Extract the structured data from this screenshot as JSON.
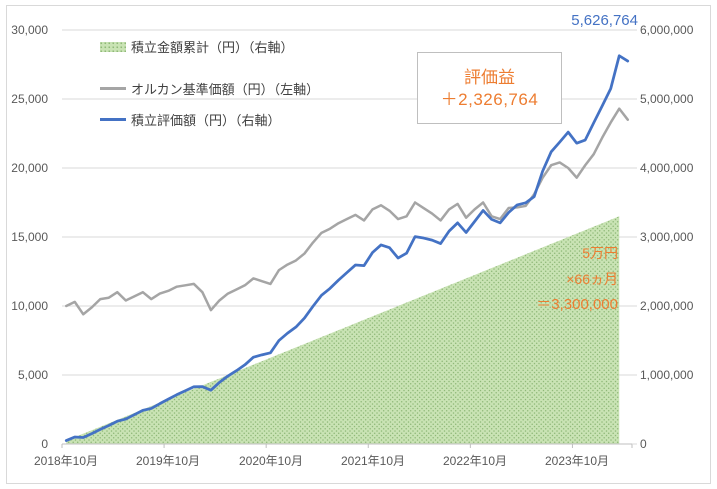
{
  "colors": {
    "blue": "#4472C4",
    "gray": "#A5A5A5",
    "green_fill": "#C9E3B4",
    "green_dot": "#8FB878",
    "orange": "#ED7D31",
    "axis_text": "#595959",
    "gridline": "#D9D9D9",
    "axis_line": "#BFBFBF"
  },
  "annotations": {
    "max_label": "5,626,764",
    "gain_box": {
      "title": "評価益",
      "value": "＋2,326,764"
    },
    "contrib_note": {
      "line1": "5万円",
      "line2": "×66ヵ月",
      "line3": "＝3,300,000"
    }
  },
  "chart_data": {
    "type": "combo",
    "title": "",
    "months": 67,
    "x_start": "2018年10月",
    "x_tick_labels": [
      "2018年10月",
      "2019年10月",
      "2020年10月",
      "2021年10月",
      "2022年10月",
      "2023年10月"
    ],
    "grid": true,
    "legend_position": "top-left-inside",
    "left_axis": {
      "min": 0,
      "max": 30000,
      "step": 5000,
      "tick_labels": [
        "30,000",
        "25,000",
        "20,000",
        "15,000",
        "10,000",
        "5,000",
        "0"
      ]
    },
    "right_axis": {
      "min": 0,
      "max": 6000000,
      "step": 1000000,
      "tick_labels": [
        "6,000,000",
        "5,000,000",
        "4,000,000",
        "3,000,000",
        "2,000,000",
        "1,000,000",
        "0"
      ]
    },
    "monthly_contribution": 50000,
    "series": [
      {
        "name": "積立金額累計（円）（右軸）",
        "type": "area",
        "axis": "right",
        "color": "#C9E3B4",
        "values": [
          50000,
          100000,
          150000,
          200000,
          250000,
          300000,
          350000,
          400000,
          450000,
          500000,
          550000,
          600000,
          650000,
          700000,
          750000,
          800000,
          850000,
          900000,
          950000,
          1000000,
          1050000,
          1100000,
          1150000,
          1200000,
          1250000,
          1300000,
          1350000,
          1400000,
          1450000,
          1500000,
          1550000,
          1600000,
          1650000,
          1700000,
          1750000,
          1800000,
          1850000,
          1900000,
          1950000,
          2000000,
          2050000,
          2100000,
          2150000,
          2200000,
          2250000,
          2300000,
          2350000,
          2400000,
          2450000,
          2500000,
          2550000,
          2600000,
          2650000,
          2700000,
          2750000,
          2800000,
          2850000,
          2900000,
          2950000,
          3000000,
          3050000,
          3100000,
          3150000,
          3200000,
          3250000,
          3300000,
          null
        ]
      },
      {
        "name": "オルカン基準価額（円）（左軸）",
        "type": "line",
        "axis": "left",
        "color": "#A5A5A5",
        "values": [
          10000,
          10300,
          9400,
          9900,
          10500,
          10600,
          11000,
          10400,
          10700,
          11000,
          10500,
          10900,
          11100,
          11400,
          11500,
          11600,
          11000,
          9700,
          10400,
          10900,
          11200,
          11500,
          12000,
          11800,
          11600,
          12600,
          13000,
          13300,
          13800,
          14600,
          15300,
          15600,
          16000,
          16300,
          16600,
          16200,
          17000,
          17300,
          16900,
          16300,
          16500,
          17500,
          17100,
          16700,
          16200,
          17000,
          17400,
          16400,
          17000,
          17500,
          16500,
          16300,
          17100,
          17150,
          17250,
          18100,
          19300,
          20200,
          20400,
          20000,
          19300,
          20200,
          21000,
          22200,
          23300,
          24300,
          23500
        ]
      },
      {
        "name": "積立評価額（円）（右軸）",
        "type": "line",
        "axis": "right",
        "color": "#4472C4",
        "values": [
          50000,
          102000,
          95000,
          151000,
          212000,
          268000,
          330000,
          362000,
          425000,
          487000,
          515000,
          585000,
          650000,
          715000,
          772000,
          830000,
          832000,
          780000,
          892000,
          985000,
          1062000,
          1148000,
          1258000,
          1292000,
          1322000,
          1500000,
          1605000,
          1695000,
          1825000,
          1995000,
          2155000,
          2255000,
          2375000,
          2485000,
          2595000,
          2585000,
          2775000,
          2885000,
          2845000,
          2695000,
          2765000,
          3005000,
          2985000,
          2955000,
          2905000,
          3085000,
          3205000,
          3065000,
          3225000,
          3385000,
          3255000,
          3205000,
          3355000,
          3465000,
          3495000,
          3585000,
          3955000,
          4235000,
          4375000,
          4520000,
          4360000,
          4405000,
          4655000,
          4900000,
          5150000,
          5626764,
          5550000
        ]
      }
    ]
  }
}
